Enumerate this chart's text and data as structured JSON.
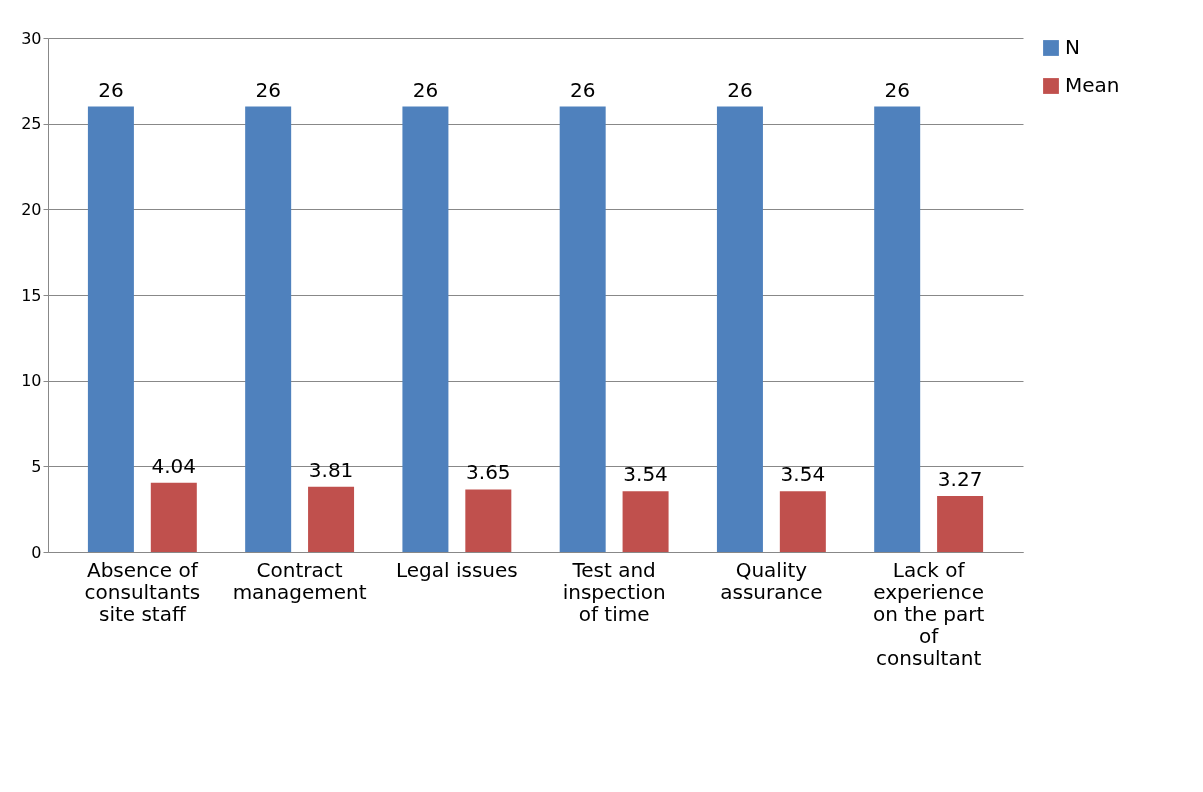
{
  "chart_data": {
    "type": "bar",
    "categories": [
      "Absence of consultants site staff",
      "Contract management",
      "Legal issues",
      "Test and inspection of time",
      "Quality assurance",
      "Lack of experience on the part of consultant"
    ],
    "series": [
      {
        "name": "N",
        "color": "#4f81bd",
        "values": [
          26,
          26,
          26,
          26,
          26,
          26
        ]
      },
      {
        "name": "Mean",
        "color": "#c0504d",
        "values": [
          4.04,
          3.81,
          3.65,
          3.54,
          3.54,
          3.27
        ]
      }
    ],
    "ylim": [
      0,
      30
    ],
    "yticks": [
      0,
      5,
      10,
      15,
      20,
      25,
      30
    ],
    "grid": "y",
    "legend": "right",
    "data_labels": true
  }
}
